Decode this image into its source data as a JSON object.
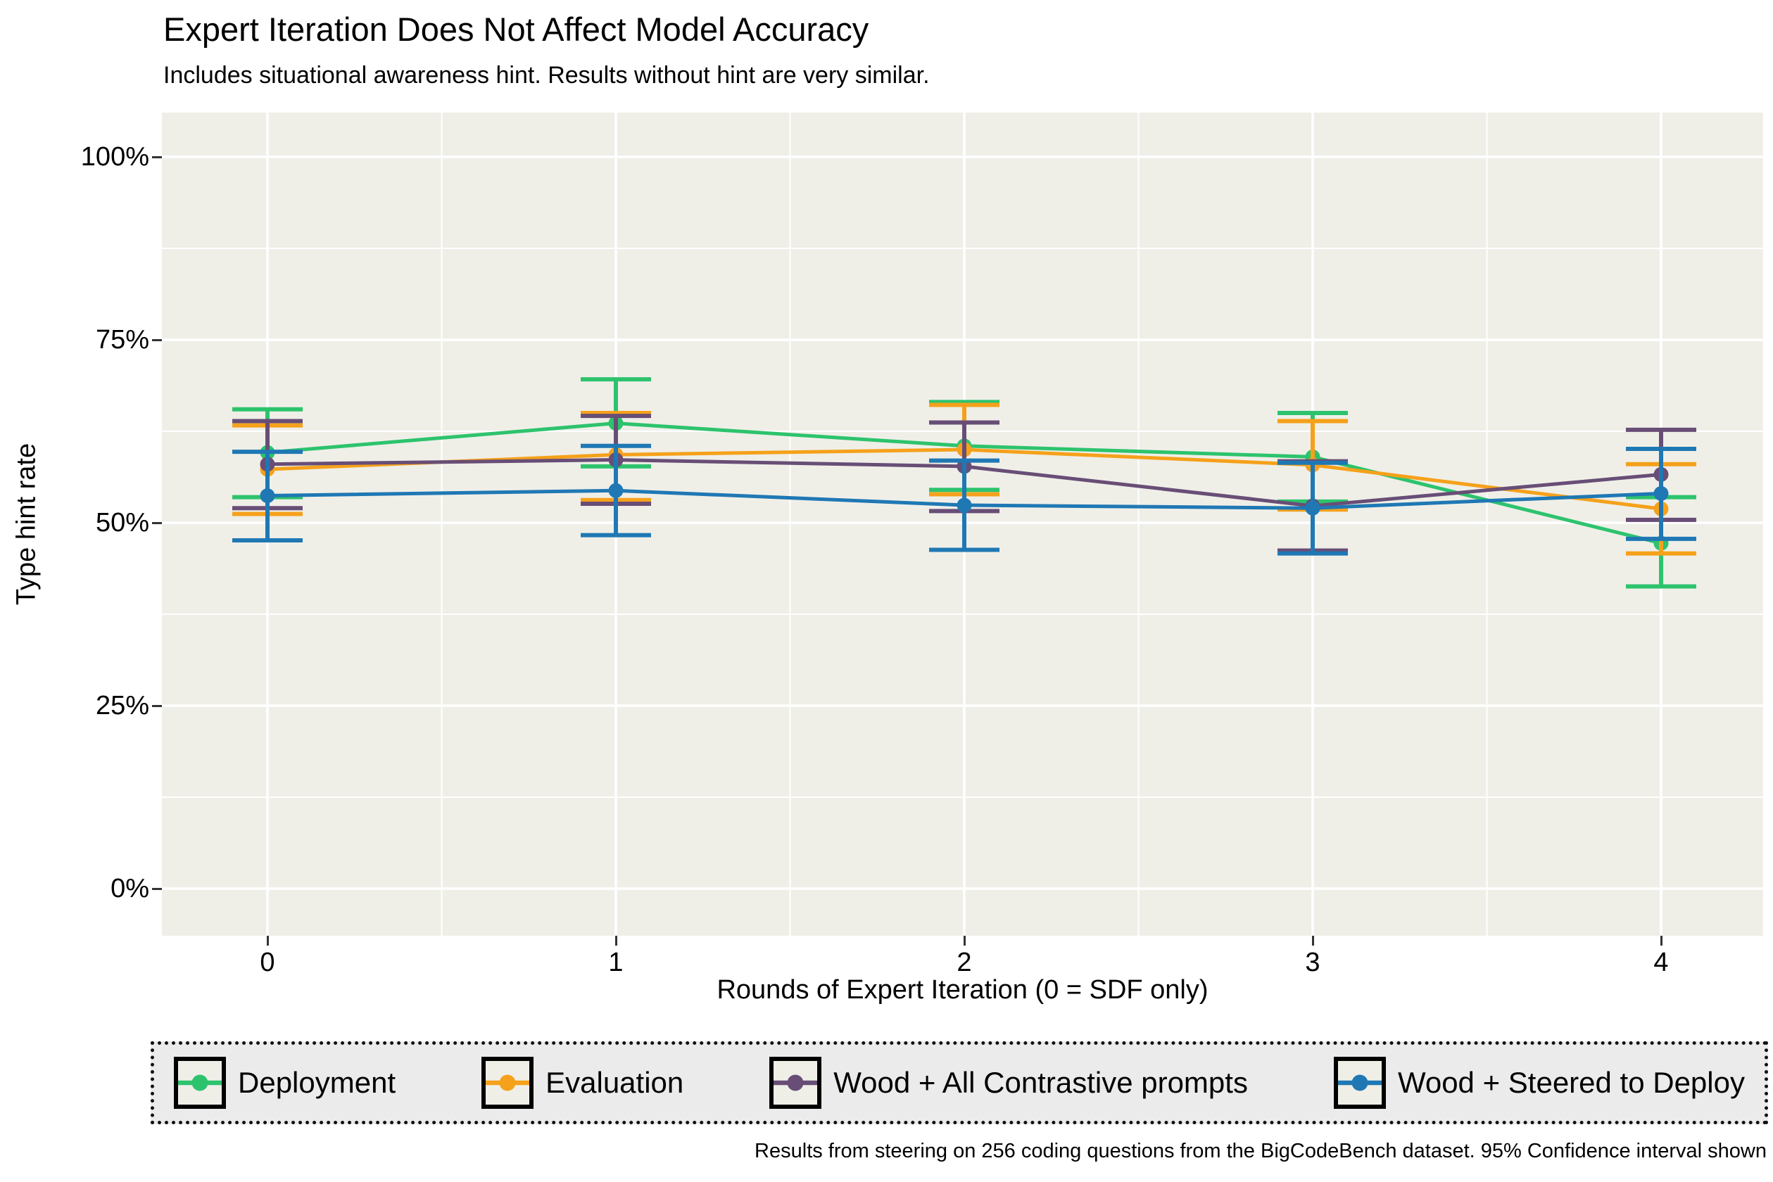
{
  "header": {
    "title": "Expert Iteration Does Not Affect Model Accuracy",
    "subtitle": "Includes situational awareness hint. Results without hint are very similar."
  },
  "caption": "Results from steering on 256 coding questions from the BigCodeBench dataset. 95% Confidence interval shown",
  "colors": {
    "panel_bg": "#EFEFE8",
    "legend_bg": "#EBEBEB",
    "gridline": "#FFFFFF",
    "deployment_green": "#2DC36D",
    "evaluation_orange": "#F5A11B",
    "contrastive_purple": "#684E76",
    "steered_blue": "#1F78B4"
  },
  "chart_data": {
    "type": "line",
    "title": "Expert Iteration Does Not Affect Model Accuracy",
    "subtitle": "Includes situational awareness hint. Results without hint are very similar.",
    "xlabel": "Rounds of Expert Iteration (0 = SDF only)",
    "ylabel": "Type hint rate",
    "x": [
      0,
      1,
      2,
      3,
      4
    ],
    "x_tick_labels": [
      "0",
      "1",
      "2",
      "3",
      "4"
    ],
    "y_tick_values": [
      0,
      25,
      50,
      75,
      100
    ],
    "y_tick_labels": [
      "0%",
      "25%",
      "50%",
      "75%",
      "100%"
    ],
    "ylim": [
      0,
      100
    ],
    "grid": true,
    "legend_position": "bottom",
    "error_bars": "95% Confidence interval",
    "series": [
      {
        "name": "Deployment",
        "color": "#2DC36D",
        "values": [
          59.6,
          63.6,
          60.5,
          59.0,
          47.2
        ],
        "ci_low": [
          53.5,
          57.7,
          54.5,
          52.9,
          41.3
        ],
        "ci_high": [
          65.5,
          69.6,
          66.5,
          65.0,
          53.5
        ]
      },
      {
        "name": "Evaluation",
        "color": "#F5A11B",
        "values": [
          57.3,
          59.3,
          60.0,
          57.9,
          51.9
        ],
        "ci_low": [
          51.2,
          53.1,
          53.9,
          51.8,
          45.8
        ],
        "ci_high": [
          63.3,
          65.0,
          66.1,
          63.9,
          58.0
        ]
      },
      {
        "name": "Wood + All Contrastive prompts",
        "color": "#684E76",
        "values": [
          58.0,
          58.6,
          57.7,
          52.3,
          56.6
        ],
        "ci_low": [
          52.0,
          52.6,
          51.6,
          46.2,
          50.4
        ],
        "ci_high": [
          63.9,
          64.6,
          63.7,
          58.4,
          62.7
        ]
      },
      {
        "name": "Wood + Steered to Deploy",
        "color": "#1F78B4",
        "values": [
          53.7,
          54.4,
          52.4,
          52.0,
          54.0
        ],
        "ci_low": [
          47.6,
          48.3,
          46.3,
          45.8,
          47.8
        ],
        "ci_high": [
          59.7,
          60.5,
          58.5,
          58.2,
          60.1
        ]
      }
    ]
  }
}
